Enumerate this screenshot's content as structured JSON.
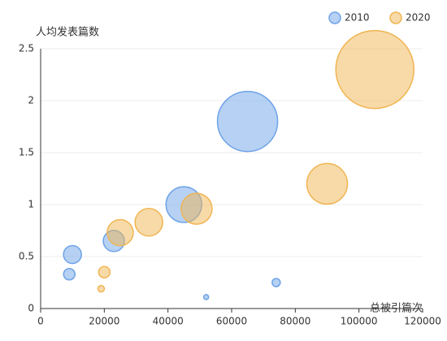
{
  "chart_data": {
    "type": "scatter",
    "y_label": "人均发表篇数",
    "x_label": "总被引篇次",
    "xlim": [
      0,
      120000
    ],
    "xticks": [
      0,
      20000,
      40000,
      60000,
      80000,
      100000,
      120000
    ],
    "ylim": [
      0,
      2.5
    ],
    "yticks": [
      0,
      0.5,
      1,
      1.5,
      2,
      2.5
    ],
    "grid": true,
    "legend": "top-right",
    "series": [
      {
        "name": "2010",
        "color": "#6ea3e8",
        "x": [
          9000,
          10000,
          23000,
          45000,
          65000,
          52000,
          74000
        ],
        "values": [
          0.33,
          0.52,
          0.65,
          1.0,
          1.8,
          0.11,
          0.25
        ],
        "sizes": [
          14,
          22,
          26,
          44,
          74,
          6,
          10
        ]
      },
      {
        "name": "2020",
        "color": "#f0b552",
        "x": [
          19000,
          20000,
          25000,
          34000,
          49000,
          90000,
          105000
        ],
        "values": [
          0.19,
          0.35,
          0.73,
          0.83,
          0.96,
          1.2,
          2.3
        ],
        "sizes": [
          8,
          14,
          32,
          34,
          38,
          50,
          96
        ]
      }
    ]
  }
}
